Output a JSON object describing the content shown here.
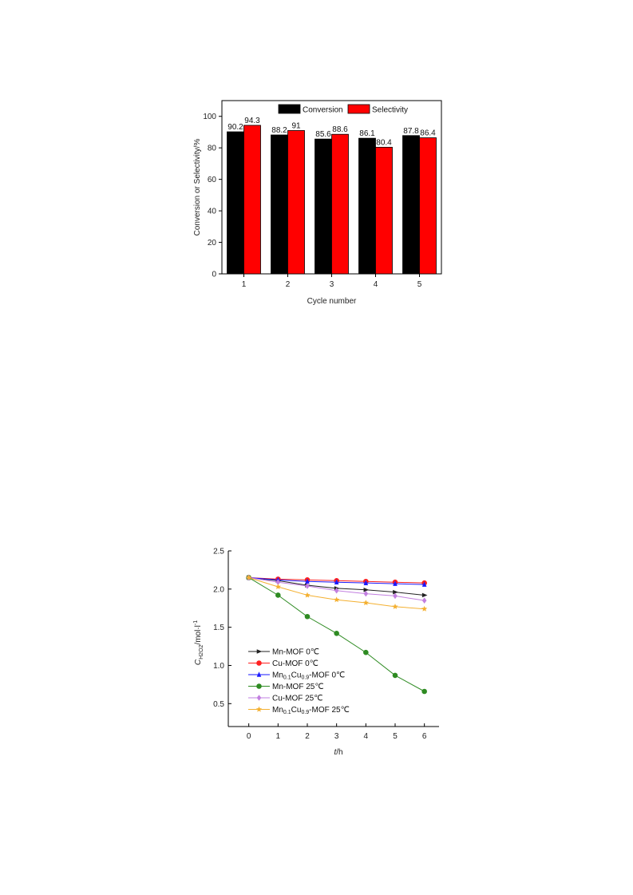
{
  "chart_data": [
    {
      "type": "bar",
      "xlabel": "Cycle number",
      "ylabel": "Conversion or Selectivity/%",
      "ylim": [
        0,
        110
      ],
      "yticks": [
        0,
        20,
        40,
        60,
        80,
        100
      ],
      "categories": [
        "1",
        "2",
        "3",
        "4",
        "5"
      ],
      "legend_position": "top-right",
      "grid": false,
      "series": [
        {
          "name": "Conversion",
          "color": "#000000",
          "values": [
            90.2,
            88.2,
            85.6,
            86.1,
            87.8
          ],
          "labels": [
            "90.2",
            "88.2",
            "85.6",
            "86.1",
            "87.8"
          ]
        },
        {
          "name": "Selectivity",
          "color": "#ff0000",
          "values": [
            94.3,
            91,
            88.6,
            80.4,
            86.4
          ],
          "labels": [
            "94.3",
            "91",
            "88.6",
            "80.4",
            "86.4"
          ]
        }
      ]
    },
    {
      "type": "line",
      "xlabel_main": "t",
      "xlabel_unit": "/h",
      "ylabel_main": "C",
      "ylabel_sub": "H2O2",
      "ylabel_unit": "/mol·l",
      "ylabel_sup": "-1",
      "xlim": [
        -0.7,
        6.5
      ],
      "ylim": [
        0.2,
        2.5
      ],
      "xticks": [
        0,
        1,
        2,
        3,
        4,
        5,
        6
      ],
      "yticks": [
        0.5,
        1.0,
        1.5,
        2.0,
        2.5
      ],
      "ytick_labels": [
        "0.5",
        "1.0",
        "1.5",
        "2.0",
        "2.5"
      ],
      "x": [
        0,
        1,
        2,
        3,
        4,
        5,
        6
      ],
      "legend_position": "bottom-left",
      "grid": false,
      "series": [
        {
          "name_main": "Mn-MOF 0℃",
          "sub1": "",
          "mid": "",
          "sub2": "",
          "tail": "",
          "color": "#222222",
          "marker": "triangle-right",
          "values": [
            2.15,
            2.11,
            2.05,
            2.01,
            1.99,
            1.96,
            1.92
          ]
        },
        {
          "name_main": "Cu-MOF 0℃",
          "sub1": "",
          "mid": "",
          "sub2": "",
          "tail": "",
          "color": "#ff2020",
          "marker": "circle",
          "values": [
            2.15,
            2.13,
            2.12,
            2.11,
            2.1,
            2.09,
            2.08
          ]
        },
        {
          "name_main": "Mn",
          "sub1": "0.1",
          "mid": "Cu",
          "sub2": "0.9",
          "tail": "-MOF 0℃",
          "color": "#1a1aff",
          "marker": "triangle-up",
          "values": [
            2.15,
            2.12,
            2.1,
            2.09,
            2.08,
            2.07,
            2.06
          ]
        },
        {
          "name_main": "Mn-MOF 25℃",
          "sub1": "",
          "mid": "",
          "sub2": "",
          "tail": "",
          "color": "#2e8b22",
          "marker": "circle",
          "values": [
            2.15,
            1.92,
            1.64,
            1.42,
            1.17,
            0.87,
            0.66
          ]
        },
        {
          "name_main": "Cu-MOF 25℃",
          "sub1": "",
          "mid": "",
          "sub2": "",
          "tail": "",
          "color": "#c27fe0",
          "marker": "diamond",
          "values": [
            2.15,
            2.09,
            2.04,
            1.98,
            1.94,
            1.91,
            1.85
          ]
        },
        {
          "name_main": "Mn",
          "sub1": "0.1",
          "mid": "Cu",
          "sub2": "0.9",
          "tail": "-MOF 25℃",
          "color": "#f4b030",
          "marker": "star",
          "values": [
            2.15,
            2.03,
            1.92,
            1.86,
            1.82,
            1.77,
            1.74
          ]
        }
      ]
    }
  ]
}
